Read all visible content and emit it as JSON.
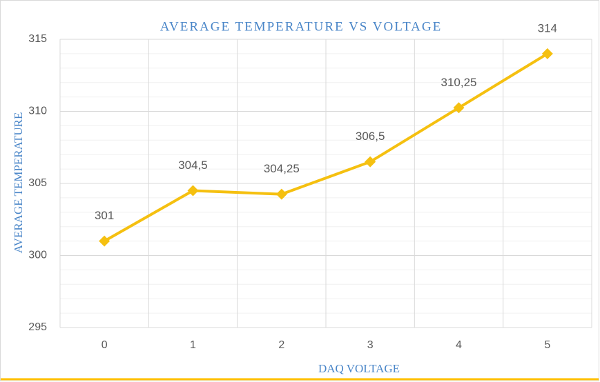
{
  "chart_data": {
    "type": "line",
    "title": "AVERAGE TEMPERATURE VS VOLTAGE",
    "x_label": "DAQ VOLTAGE",
    "y_label": "AVERAGE TEMPERATURE",
    "categories": [
      "0",
      "1",
      "2",
      "3",
      "4",
      "5"
    ],
    "series": [
      {
        "name": "Average Temperature",
        "color": "#f5c010",
        "values": [
          301,
          304.5,
          304.25,
          306.5,
          310.25,
          314
        ],
        "value_labels": [
          "301",
          "304,5",
          "304,25",
          "306,5",
          "310,25",
          "314"
        ]
      }
    ],
    "ylim": [
      295,
      315
    ],
    "yticks": [
      295,
      300,
      305,
      310,
      315
    ],
    "grid": true,
    "minor_grid": true
  }
}
